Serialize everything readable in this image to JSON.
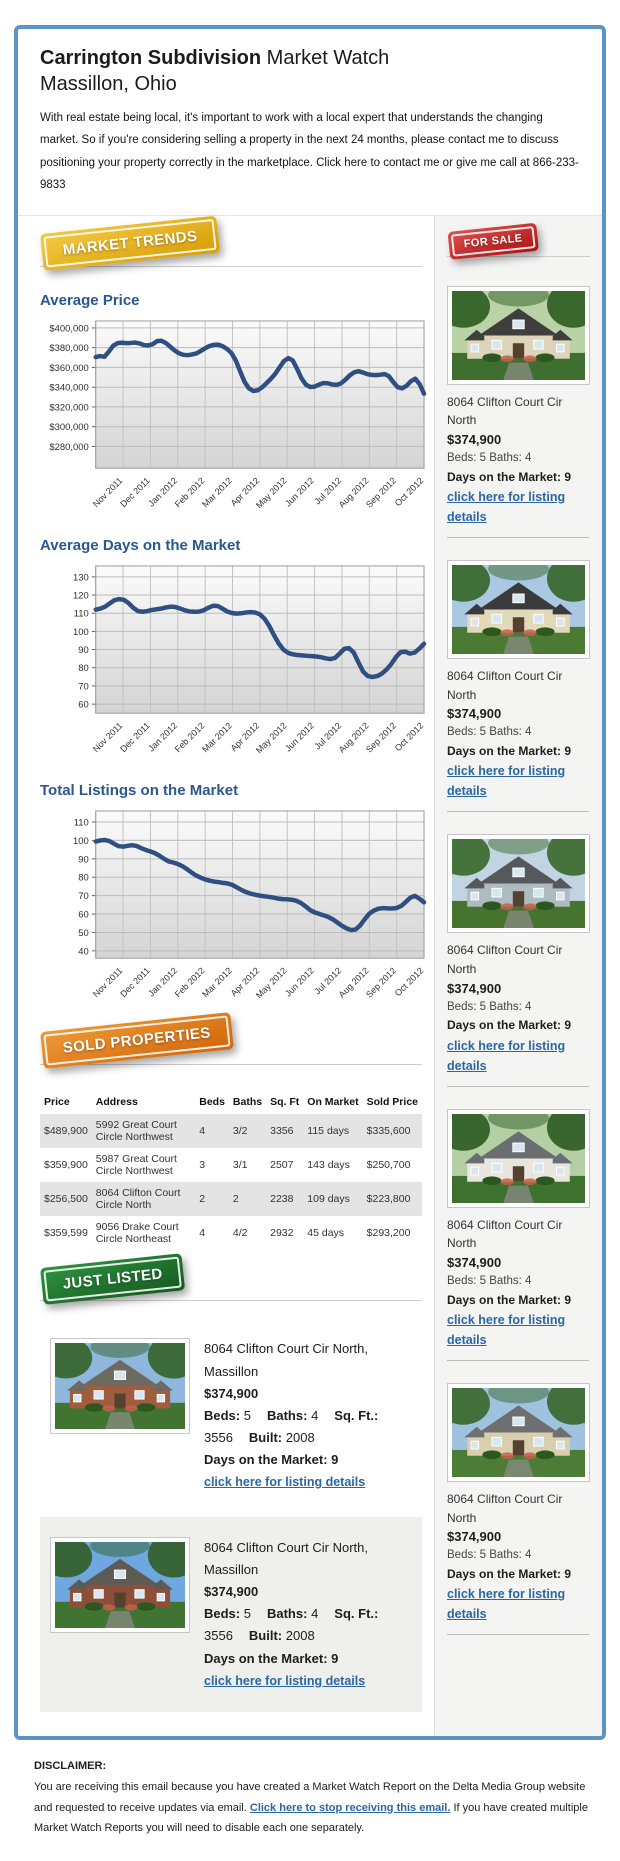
{
  "header": {
    "title_bold": "Carrington Subdivision",
    "title_rest": " Market Watch",
    "subtitle": "Massillon, Ohio",
    "intro": "With real estate being local, it's important to work with a local expert that understands the changing market. So if you're considering selling a property in the next 24 months, please contact me to discuss positioning your property correctly in the marketplace. Click here to contact me or give me call at 866-233-9833"
  },
  "badges": {
    "market_trends": "MARKET TRENDS",
    "for_sale": "FOR SALE",
    "sold_properties": "SOLD PROPERTIES",
    "just_listed": "JUST LISTED"
  },
  "colors": {
    "frame_border": "#5d94c6",
    "heading_blue": "#29588f",
    "link_blue": "#2b66a5",
    "chart_line": "#2f4f80",
    "badge_yellow": "#e2ae14",
    "badge_red": "#bb2222",
    "badge_orange": "#db7a17",
    "badge_green": "#1f6f2c"
  },
  "chart_data": [
    {
      "type": "line",
      "title": "Average Price",
      "x": [
        "Nov 2011",
        "Dec 2011",
        "Jan 2012",
        "Feb 2012",
        "Mar 2012",
        "Apr 2012",
        "May 2012",
        "Jun 2012",
        "Jul 2012",
        "Aug 2012",
        "Sep 2012",
        "Oct 2012"
      ],
      "values": [
        370500,
        371500,
        370800,
        376000,
        382000,
        384500,
        385000,
        384500,
        384800,
        385200,
        384200,
        382600,
        382200,
        383400,
        386600,
        387000,
        384800,
        381000,
        377200,
        374400,
        372800,
        372400,
        373200,
        374200,
        376600,
        379400,
        381600,
        382800,
        383000,
        381400,
        378600,
        374600,
        367000,
        356000,
        345400,
        338800,
        336200,
        336800,
        339800,
        344000,
        348400,
        353400,
        360000,
        366400,
        369400,
        367000,
        358600,
        349000,
        342600,
        340200,
        340600,
        342600,
        344200,
        344000,
        342800,
        342400,
        343800,
        347400,
        351800,
        355000,
        356200,
        355000,
        353200,
        352400,
        352200,
        352600,
        353200,
        351000,
        345000,
        340000,
        338800,
        341400,
        346000,
        348600,
        343000,
        333400
      ],
      "ylim": [
        258000,
        407000
      ],
      "ytick_values": [
        400000,
        380000,
        360000,
        340000,
        320000,
        300000,
        280000
      ],
      "ytick_labels": [
        "$400,000",
        "$380,000",
        "$360,000",
        "$340,000",
        "$320,000",
        "$300,000",
        "$280,000"
      ],
      "xlabel": "",
      "ylabel": "",
      "grid": true,
      "legend": "none"
    },
    {
      "type": "line",
      "title": "Average Days on the Market",
      "x": [
        "Nov 2011",
        "Dec 2011",
        "Jan 2012",
        "Feb 2012",
        "Mar 2012",
        "Apr 2012",
        "May 2012",
        "Jun 2012",
        "Jul 2012",
        "Aug 2012",
        "Sep 2012",
        "Oct 2012"
      ],
      "values": [
        112,
        112.6,
        113.6,
        115.4,
        117.2,
        117.8,
        117.4,
        115.6,
        113,
        111.2,
        110.8,
        111.2,
        111.8,
        112.2,
        112.6,
        113.2,
        113.6,
        113.4,
        112.6,
        111.6,
        111,
        110.8,
        110.9,
        111.6,
        113,
        114.1,
        114,
        112.6,
        111,
        110.1,
        109.8,
        110,
        110.4,
        110.6,
        110.4,
        109.4,
        107,
        103,
        98,
        93.4,
        90,
        88.2,
        87.4,
        87,
        86.8,
        86.6,
        86.4,
        86.2,
        85.8,
        85.2,
        84.8,
        85.4,
        87.8,
        90.4,
        90.8,
        88.4,
        83,
        78,
        75.4,
        74.9,
        75.4,
        76.8,
        79,
        82,
        85.8,
        88.6,
        88.8,
        87.8,
        88.4,
        90.6,
        93.2
      ],
      "ylim": [
        55,
        136
      ],
      "ytick_values": [
        130,
        120,
        110,
        100,
        90,
        80,
        70,
        60
      ],
      "ytick_labels": [
        "130",
        "120",
        "110",
        "100",
        "90",
        "80",
        "70",
        "60"
      ],
      "xlabel": "",
      "ylabel": "",
      "grid": true,
      "legend": "none"
    },
    {
      "type": "line",
      "title": "Total Listings on the Market",
      "x": [
        "Nov 2011",
        "Dec 2011",
        "Jan 2012",
        "Feb 2012",
        "Mar 2012",
        "Apr 2012",
        "May 2012",
        "Jun 2012",
        "Jul 2012",
        "Aug 2012",
        "Sep 2012",
        "Oct 2012"
      ],
      "values": [
        99.4,
        100,
        100.2,
        99.6,
        98.2,
        96.9,
        96.6,
        97.1,
        97.4,
        96.9,
        95.8,
        94.8,
        94,
        93,
        91.6,
        90,
        88.6,
        88,
        87.2,
        86,
        84.4,
        82.6,
        81,
        79.8,
        78.8,
        78.1,
        77.6,
        77.3,
        76.9,
        76.6,
        75.8,
        74.4,
        73,
        71.9,
        71.1,
        70.5,
        70,
        69.6,
        69.3,
        68.9,
        68.4,
        68.1,
        68,
        67.8,
        67.2,
        66,
        64.2,
        62.2,
        60.9,
        60.1,
        59.3,
        58.4,
        57.1,
        55.4,
        53.6,
        52.2,
        51.3,
        51.6,
        53.8,
        57.2,
        60.2,
        61.9,
        62.9,
        63.2,
        63.1,
        63,
        63.3,
        64.4,
        66.6,
        68.9,
        69.9,
        68.3,
        66.4
      ],
      "ylim": [
        36,
        116
      ],
      "ytick_values": [
        110,
        100,
        90,
        80,
        70,
        60,
        50,
        40
      ],
      "ytick_labels": [
        "110",
        "100",
        "90",
        "80",
        "70",
        "60",
        "50",
        "40"
      ],
      "xlabel": "",
      "ylabel": "",
      "grid": true,
      "legend": "none"
    }
  ],
  "for_sale_listings": [
    {
      "address": "8064 Clifton Court Cir North",
      "price": "$374,900",
      "beds_baths": "Beds: 5 Baths: 4",
      "days": "Days on the Market: 9",
      "link": "click here for listing details"
    },
    {
      "address": "8064 Clifton Court Cir North",
      "price": "$374,900",
      "beds_baths": "Beds: 5 Baths: 4",
      "days": "Days on the Market: 9",
      "link": "click here for listing details"
    },
    {
      "address": "8064 Clifton Court Cir North",
      "price": "$374,900",
      "beds_baths": "Beds: 5 Baths: 4",
      "days": "Days on the Market: 9",
      "link": "click here for listing details"
    },
    {
      "address": "8064 Clifton Court Cir North",
      "price": "$374,900",
      "beds_baths": "Beds: 5 Baths: 4",
      "days": "Days on the Market: 9",
      "link": "click here for listing details"
    },
    {
      "address": "8064 Clifton Court Cir North",
      "price": "$374,900",
      "beds_baths": "Beds: 5 Baths: 4",
      "days": "Days on the Market: 9",
      "link": "click here for listing details"
    }
  ],
  "sold_table": {
    "headers": [
      "Price",
      "Address",
      "Beds",
      "Baths",
      "Sq. Ft",
      "On Market",
      "Sold Price"
    ],
    "rows": [
      [
        "$489,900",
        "5992 Great Court Circle Northwest",
        "4",
        "3/2",
        "3356",
        "115 days",
        "$335,600"
      ],
      [
        "$359,900",
        "5987 Great Court Circle Northwest",
        "3",
        "3/1",
        "2507",
        "143 days",
        "$250,700"
      ],
      [
        "$256,500",
        "8064 Clifton Court Circle North",
        "2",
        "2",
        "2238",
        "109 days",
        "$223,800"
      ],
      [
        "$359,599",
        "9056 Drake Court Circle Northeast",
        "4",
        "4/2",
        "2932",
        "45 days",
        "$293,200"
      ]
    ]
  },
  "just_listed": [
    {
      "address": "8064 Clifton Court Cir North, Massillon",
      "price": "$374,900",
      "specs": [
        {
          "label": "Beds:",
          "value": "5"
        },
        {
          "label": "Baths:",
          "value": "4"
        },
        {
          "label": "Sq. Ft.:",
          "value": "3556"
        },
        {
          "label": "Built:",
          "value": "2008"
        }
      ],
      "days": "Days on the Market: 9",
      "link": "click here for listing details"
    },
    {
      "address": "8064 Clifton Court Cir North, Massillon",
      "price": "$374,900",
      "specs": [
        {
          "label": "Beds:",
          "value": "5"
        },
        {
          "label": "Baths:",
          "value": "4"
        },
        {
          "label": "Sq. Ft.:",
          "value": "3556"
        },
        {
          "label": "Built:",
          "value": "2008"
        }
      ],
      "days": "Days on the Market: 9",
      "link": "click here for listing details"
    }
  ],
  "disclaimer": {
    "heading": "DISCLAIMER:",
    "before_link": "You are receiving this email because you have created a Market Watch Report on the Delta Media Group website and requested to receive updates via email.",
    "link": "Click here to stop receiving this email.",
    "after_link": "If you have created multiple Market Watch Reports you will need to disable each one separately."
  },
  "house_palettes": [
    {
      "sky": "#b9d2a6",
      "wall": "#ddd4ba",
      "roof": "#3e3e3c",
      "grass": "#3f6f2e",
      "tree": "#2e5d22"
    },
    {
      "sky": "#aac8e2",
      "wall": "#e2d9b8",
      "roof": "#3a3a3c",
      "grass": "#4a7a33",
      "tree": "#37662a"
    },
    {
      "sky": "#c2d4e2",
      "wall": "#aebcc2",
      "roof": "#55585c",
      "grass": "#46742f",
      "tree": "#3c6a2d"
    },
    {
      "sky": "#b5cfa5",
      "wall": "#e9e6df",
      "roof": "#6a6d72",
      "grass": "#3e7030",
      "tree": "#2f5c24"
    },
    {
      "sky": "#9fc2df",
      "wall": "#d9cfae",
      "roof": "#6e6f72",
      "grass": "#4c7c35",
      "tree": "#3a682c"
    },
    {
      "sky": "#8fb7dd",
      "wall": "#a05c3e",
      "roof": "#6d6a62",
      "grass": "#417431",
      "tree": "#35632a"
    },
    {
      "sky": "#6fa8e0",
      "wall": "#8e4f3a",
      "roof": "#5e5b55",
      "grass": "#3f7530",
      "tree": "#336028"
    }
  ]
}
